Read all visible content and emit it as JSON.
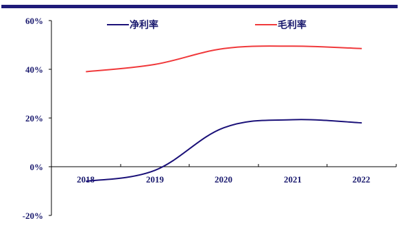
{
  "colors": {
    "top_bar": "#1f1b79",
    "axis": "#000000"
  },
  "chart_data": {
    "type": "line",
    "x": [
      "2018",
      "2019",
      "2020",
      "2021",
      "2022"
    ],
    "series": [
      {
        "name": "净利率",
        "color": "#1a1078",
        "values": [
          -6.0,
          -1.5,
          16.0,
          19.3,
          18.0
        ]
      },
      {
        "name": "毛利率",
        "color": "#f0383a",
        "values": [
          39.0,
          42.0,
          48.5,
          49.5,
          48.5
        ]
      }
    ],
    "y_ticks": [
      "60%",
      "40%",
      "20%",
      "0%",
      "-20%"
    ],
    "ylim": [
      -20,
      60
    ],
    "grid": false,
    "legend_position": "top"
  }
}
